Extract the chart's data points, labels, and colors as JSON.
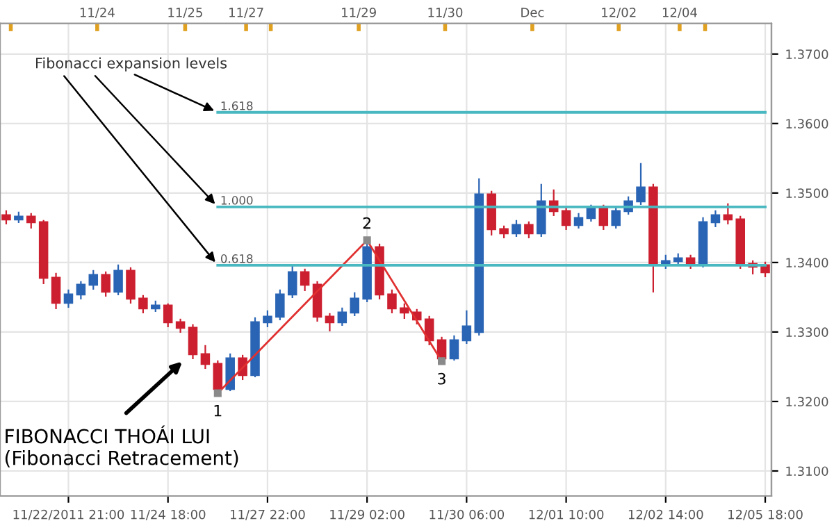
{
  "chart_data": {
    "type": "candlestick",
    "categories": [
      null,
      null,
      null,
      null,
      null,
      "11/22/2011 21:00",
      null,
      null,
      null,
      null,
      null,
      null,
      null,
      "11/24 18:00",
      null,
      null,
      null,
      null,
      null,
      null,
      null,
      "11/27 22:00",
      null,
      null,
      null,
      null,
      null,
      null,
      null,
      "11/29 02:00",
      null,
      null,
      null,
      null,
      null,
      null,
      null,
      "11/30 06:00",
      null,
      null,
      null,
      null,
      null,
      null,
      null,
      "12/01 10:00",
      null,
      null,
      null,
      null,
      null,
      null,
      null,
      "12/02 14:00",
      null,
      null,
      null,
      null,
      null,
      null,
      null,
      "12/05 18:00"
    ],
    "ohlc": [
      [
        1.3468,
        1.3474,
        1.3456,
        1.3462
      ],
      [
        1.3462,
        1.3472,
        1.3458,
        1.3466
      ],
      [
        1.3466,
        1.347,
        1.345,
        1.3458
      ],
      [
        1.3458,
        1.346,
        1.337,
        1.3378
      ],
      [
        1.3378,
        1.3384,
        1.3334,
        1.3342
      ],
      [
        1.3342,
        1.336,
        1.3336,
        1.3354
      ],
      [
        1.3354,
        1.3372,
        1.3348,
        1.3368
      ],
      [
        1.3368,
        1.3388,
        1.3362,
        1.3382
      ],
      [
        1.3382,
        1.3386,
        1.3352,
        1.3358
      ],
      [
        1.3358,
        1.3396,
        1.3354,
        1.3388
      ],
      [
        1.3388,
        1.3392,
        1.3342,
        1.3348
      ],
      [
        1.3348,
        1.3352,
        1.3328,
        1.3334
      ],
      [
        1.3334,
        1.3344,
        1.333,
        1.3338
      ],
      [
        1.3338,
        1.334,
        1.3308,
        1.3314
      ],
      [
        1.3314,
        1.3318,
        1.33,
        1.3306
      ],
      [
        1.3306,
        1.331,
        1.3262,
        1.3268
      ],
      [
        1.3268,
        1.328,
        1.3248,
        1.3254
      ],
      [
        1.3254,
        1.3258,
        1.3212,
        1.3218
      ],
      [
        1.3218,
        1.3268,
        1.3216,
        1.3262
      ],
      [
        1.3262,
        1.3266,
        1.3232,
        1.3238
      ],
      [
        1.3238,
        1.332,
        1.3236,
        1.3314
      ],
      [
        1.3314,
        1.333,
        1.3308,
        1.3322
      ],
      [
        1.3322,
        1.336,
        1.3318,
        1.3354
      ],
      [
        1.3354,
        1.3394,
        1.335,
        1.3386
      ],
      [
        1.3386,
        1.339,
        1.336,
        1.3368
      ],
      [
        1.3368,
        1.3372,
        1.3316,
        1.3322
      ],
      [
        1.3322,
        1.3326,
        1.3302,
        1.3314
      ],
      [
        1.3314,
        1.3334,
        1.331,
        1.3328
      ],
      [
        1.3328,
        1.3356,
        1.3324,
        1.3348
      ],
      [
        1.3348,
        1.3432,
        1.3344,
        1.3422
      ],
      [
        1.3422,
        1.3426,
        1.3348,
        1.3354
      ],
      [
        1.3354,
        1.336,
        1.3328,
        1.3334
      ],
      [
        1.3334,
        1.334,
        1.332,
        1.3328
      ],
      [
        1.3328,
        1.3332,
        1.3312,
        1.3318
      ],
      [
        1.3318,
        1.3322,
        1.3282,
        1.3288
      ],
      [
        1.3288,
        1.3292,
        1.3258,
        1.3262
      ],
      [
        1.3262,
        1.3294,
        1.326,
        1.3288
      ],
      [
        1.3288,
        1.333,
        1.3284,
        1.3308
      ],
      [
        1.33,
        1.352,
        1.3296,
        1.3498
      ],
      [
        1.3498,
        1.3502,
        1.344,
        1.3448
      ],
      [
        1.3448,
        1.3452,
        1.3436,
        1.3442
      ],
      [
        1.3442,
        1.346,
        1.3438,
        1.3454
      ],
      [
        1.3454,
        1.3458,
        1.3436,
        1.3442
      ],
      [
        1.3442,
        1.3512,
        1.3438,
        1.3488
      ],
      [
        1.3488,
        1.3504,
        1.3468,
        1.3474
      ],
      [
        1.3474,
        1.3478,
        1.3448,
        1.3454
      ],
      [
        1.3454,
        1.347,
        1.345,
        1.3464
      ],
      [
        1.3464,
        1.3482,
        1.346,
        1.3478
      ],
      [
        1.3478,
        1.3482,
        1.3448,
        1.3454
      ],
      [
        1.3454,
        1.3478,
        1.345,
        1.3474
      ],
      [
        1.3474,
        1.3494,
        1.347,
        1.3488
      ],
      [
        1.3488,
        1.3542,
        1.3484,
        1.3508
      ],
      [
        1.3508,
        1.3512,
        1.3358,
        1.3398
      ],
      [
        1.3398,
        1.341,
        1.3392,
        1.3402
      ],
      [
        1.3402,
        1.3412,
        1.3398,
        1.3406
      ],
      [
        1.3406,
        1.341,
        1.3392,
        1.3398
      ],
      [
        1.3398,
        1.3464,
        1.3394,
        1.3458
      ],
      [
        1.3458,
        1.3474,
        1.3452,
        1.3468
      ],
      [
        1.3468,
        1.3484,
        1.3456,
        1.3462
      ],
      [
        1.3462,
        1.3466,
        1.3392,
        1.3398
      ],
      [
        1.3398,
        1.3402,
        1.3384,
        1.3394
      ],
      [
        1.3396,
        1.34,
        1.338,
        1.3386
      ]
    ],
    "series": [
      {
        "type": "line",
        "color": "#e03030",
        "marker": "square",
        "values": [
          null,
          null,
          null,
          null,
          null,
          null,
          null,
          null,
          null,
          null,
          null,
          null,
          null,
          null,
          null,
          null,
          null,
          1.3212,
          null,
          null,
          null,
          null,
          null,
          null,
          null,
          null,
          null,
          null,
          null,
          1.3432,
          null,
          null,
          null,
          null,
          null,
          1.3258,
          null,
          null,
          null,
          null,
          null,
          null,
          null,
          null,
          null,
          null,
          null,
          null,
          null,
          null,
          null,
          null,
          null,
          null,
          null,
          null,
          null,
          null,
          null,
          null,
          null,
          null
        ]
      },
      {
        "type": "line",
        "name": "1.618",
        "color": "#4ab8c0",
        "marker": "none",
        "values": [
          null,
          null,
          null,
          null,
          null,
          null,
          null,
          null,
          null,
          null,
          null,
          null,
          null,
          null,
          null,
          null,
          null,
          1.3616,
          1.3616,
          1.3616,
          1.3616,
          1.3616,
          1.3616,
          1.3616,
          1.3616,
          1.3616,
          1.3616,
          1.3616,
          1.3616,
          1.3616,
          1.3616,
          1.3616,
          1.3616,
          1.3616,
          1.3616,
          1.3616,
          1.3616,
          1.3616,
          1.3616,
          1.3616,
          1.3616,
          1.3616,
          1.3616,
          1.3616,
          1.3616,
          1.3616,
          1.3616,
          1.3616,
          1.3616,
          1.3616,
          1.3616,
          1.3616,
          1.3616,
          1.3616,
          1.3616,
          1.3616,
          1.3616,
          1.3616,
          1.3616,
          1.3616,
          1.3616,
          1.3616
        ]
      },
      {
        "type": "line",
        "name": "1.000",
        "color": "#4ab8c0",
        "marker": "none",
        "values": [
          null,
          null,
          null,
          null,
          null,
          null,
          null,
          null,
          null,
          null,
          null,
          null,
          null,
          null,
          null,
          null,
          null,
          1.348,
          1.348,
          1.348,
          1.348,
          1.348,
          1.348,
          1.348,
          1.348,
          1.348,
          1.348,
          1.348,
          1.348,
          1.348,
          1.348,
          1.348,
          1.348,
          1.348,
          1.348,
          1.348,
          1.348,
          1.348,
          1.348,
          1.348,
          1.348,
          1.348,
          1.348,
          1.348,
          1.348,
          1.348,
          1.348,
          1.348,
          1.348,
          1.348,
          1.348,
          1.348,
          1.348,
          1.348,
          1.348,
          1.348,
          1.348,
          1.348,
          1.348,
          1.348,
          1.348,
          1.348
        ]
      },
      {
        "type": "line",
        "name": "0.618",
        "color": "#4ab8c0",
        "marker": "none",
        "values": [
          null,
          null,
          null,
          null,
          null,
          null,
          null,
          null,
          null,
          null,
          null,
          null,
          null,
          null,
          null,
          null,
          null,
          1.3396,
          1.3396,
          1.3396,
          1.3396,
          1.3396,
          1.3396,
          1.3396,
          1.3396,
          1.3396,
          1.3396,
          1.3396,
          1.3396,
          1.3396,
          1.3396,
          1.3396,
          1.3396,
          1.3396,
          1.3396,
          1.3396,
          1.3396,
          1.3396,
          1.3396,
          1.3396,
          1.3396,
          1.3396,
          1.3396,
          1.3396,
          1.3396,
          1.3396,
          1.3396,
          1.3396,
          1.3396,
          1.3396,
          1.3396,
          1.3396,
          1.3396,
          1.3396,
          1.3396,
          1.3396,
          1.3396,
          1.3396,
          1.3396,
          1.3396,
          1.3396,
          1.3396
        ]
      }
    ],
    "annotations": [
      "1",
      "2",
      "3",
      "Fibonacci expansion levels",
      "FIBONACCI THOÁI LUI\n(Fibonacci Retracement)",
      "11/24",
      "11/25",
      "11/27",
      "11/29",
      "11/30",
      "Dec",
      "12/02",
      "12/04"
    ],
    "ylim": [
      1.3064,
      1.3744
    ],
    "yticks": [
      {
        "value": 1.31,
        "label": "1.3100"
      },
      {
        "value": 1.32,
        "label": "1.3200"
      },
      {
        "value": 1.33,
        "label": "1.3300"
      },
      {
        "value": 1.34,
        "label": "1.3400"
      },
      {
        "value": 1.35,
        "label": "1.3500"
      },
      {
        "value": 1.36,
        "label": "1.3600"
      },
      {
        "value": 1.37,
        "label": "1.3700"
      }
    ],
    "grid": true
  }
}
